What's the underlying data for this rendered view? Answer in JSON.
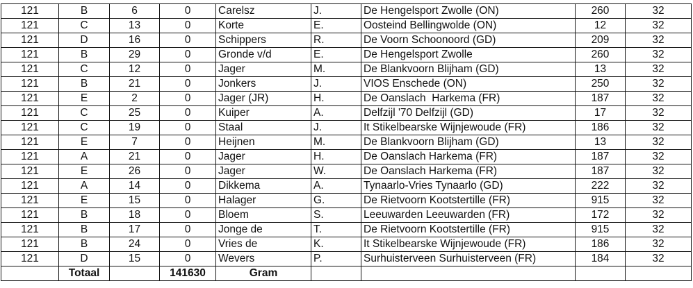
{
  "columns_count": 9,
  "rows": [
    [
      "121",
      "B",
      "6",
      "0",
      "Carelsz",
      "J.",
      "De Hengelsport Zwolle (ON)",
      "260",
      "32"
    ],
    [
      "121",
      "C",
      "13",
      "0",
      "Korte",
      "E.",
      "Oosteind Bellingwolde (ON)",
      "12",
      "32"
    ],
    [
      "121",
      "D",
      "16",
      "0",
      "Schippers",
      "R.",
      "De Voorn Schoonoord (GD)",
      "209",
      "32"
    ],
    [
      "121",
      "B",
      "29",
      "0",
      "Gronde v/d",
      "E.",
      "De Hengelsport Zwolle",
      "260",
      "32"
    ],
    [
      "121",
      "C",
      "12",
      "0",
      "Jager",
      "M.",
      "De Blankvoorn Blijham (GD)",
      "13",
      "32"
    ],
    [
      "121",
      "B",
      "21",
      "0",
      "Jonkers",
      "J.",
      "VIOS Enschede (ON)",
      "250",
      "32"
    ],
    [
      "121",
      "E",
      "2",
      "0",
      "Jager (JR)",
      "H.",
      "De Oanslach  Harkema (FR)",
      "187",
      "32"
    ],
    [
      "121",
      "C",
      "25",
      "0",
      "Kuiper",
      "A.",
      "Delfzijl '70 Delfzijl (GD)",
      "17",
      "32"
    ],
    [
      "121",
      "C",
      "19",
      "0",
      "Staal",
      "J.",
      "It Stikelbearske Wijnjewoude (FR)",
      "186",
      "32"
    ],
    [
      "121",
      "E",
      "7",
      "0",
      "Heijnen",
      "M.",
      "De Blankvoorn Blijham (GD)",
      "13",
      "32"
    ],
    [
      "121",
      "A",
      "21",
      "0",
      "Jager",
      "H.",
      "De Oanslach Harkema (FR)",
      "187",
      "32"
    ],
    [
      "121",
      "E",
      "26",
      "0",
      "Jager",
      "W.",
      "De Oanslach Harkema (FR)",
      "187",
      "32"
    ],
    [
      "121",
      "A",
      "14",
      "0",
      "Dikkema",
      "A.",
      "Tynaarlo-Vries Tynaarlo (GD)",
      "222",
      "32"
    ],
    [
      "121",
      "E",
      "15",
      "0",
      "Halager",
      "G.",
      "De Rietvoorn Kootstertille (FR)",
      "915",
      "32"
    ],
    [
      "121",
      "B",
      "18",
      "0",
      "Bloem",
      "S.",
      "Leeuwarden Leeuwarden (FR)",
      "172",
      "32"
    ],
    [
      "121",
      "B",
      "17",
      "0",
      "Jonge de",
      "T.",
      "De Rietvoorn Kootstertille (FR)",
      "915",
      "32"
    ],
    [
      "121",
      "B",
      "24",
      "0",
      "Vries de",
      "K.",
      "It Stikelbearske Wijnjewoude (FR)",
      "186",
      "32"
    ],
    [
      "121",
      "D",
      "15",
      "0",
      "Wevers",
      "P.",
      "Surhuisterveen Surhuisterveen (FR)",
      "184",
      "32"
    ]
  ],
  "total_row": [
    "",
    "Totaal",
    "",
    "141630",
    "Gram",
    "",
    "",
    "",
    ""
  ]
}
